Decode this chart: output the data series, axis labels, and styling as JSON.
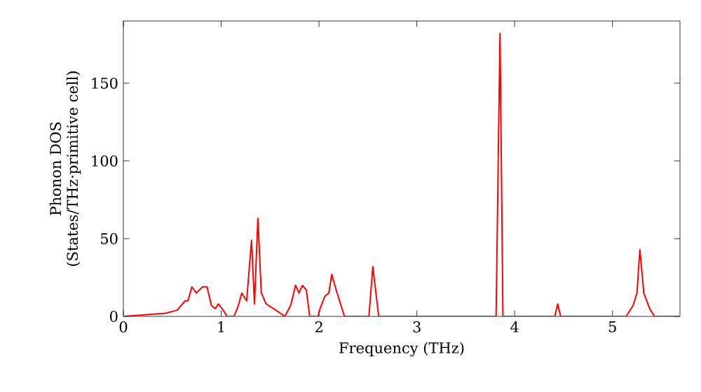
{
  "chart_data": {
    "type": "line",
    "xlabel": "Frequency (THz)",
    "ylabel": "Phonon DOS\n(States/THz·primitive cell)",
    "x": [
      0,
      0.43,
      0.55,
      0.63,
      0.66,
      0.7,
      0.745,
      0.81,
      0.855,
      0.9,
      0.94,
      0.97,
      1.02,
      1.06,
      1.13,
      1.17,
      1.21,
      1.26,
      1.31,
      1.34,
      1.375,
      1.41,
      1.46,
      1.56,
      1.65,
      1.71,
      1.76,
      1.795,
      1.83,
      1.87,
      1.905,
      1.99,
      2.01,
      2.06,
      2.1,
      2.13,
      2.18,
      2.26,
      2.51,
      2.55,
      2.61,
      3.81,
      3.85,
      3.88,
      4.41,
      4.44,
      4.47,
      5.14,
      5.21,
      5.25,
      5.28,
      5.32,
      5.38,
      5.43,
      5.69
    ],
    "series": [
      {
        "color": "#ff0000",
        "values": [
          0,
          2,
          4,
          10,
          10,
          19,
          15,
          19,
          19,
          7,
          5,
          8,
          4,
          0,
          0,
          6,
          15,
          10,
          49,
          8,
          63,
          15,
          8,
          4,
          0,
          7,
          20,
          15,
          20,
          17,
          0,
          0,
          5,
          13,
          15,
          27,
          16,
          0,
          0,
          32,
          0,
          0,
          182,
          0,
          0,
          8,
          0,
          0,
          7,
          15,
          43,
          15,
          5,
          0,
          0
        ]
      }
    ],
    "xlim": [
      0,
      5.69
    ],
    "ylim": [
      0,
      190
    ],
    "xticks": [
      0,
      1,
      2,
      3,
      4,
      5
    ],
    "yticks": [
      0,
      50,
      100,
      150
    ],
    "marker": "none",
    "line_style": "solid"
  }
}
